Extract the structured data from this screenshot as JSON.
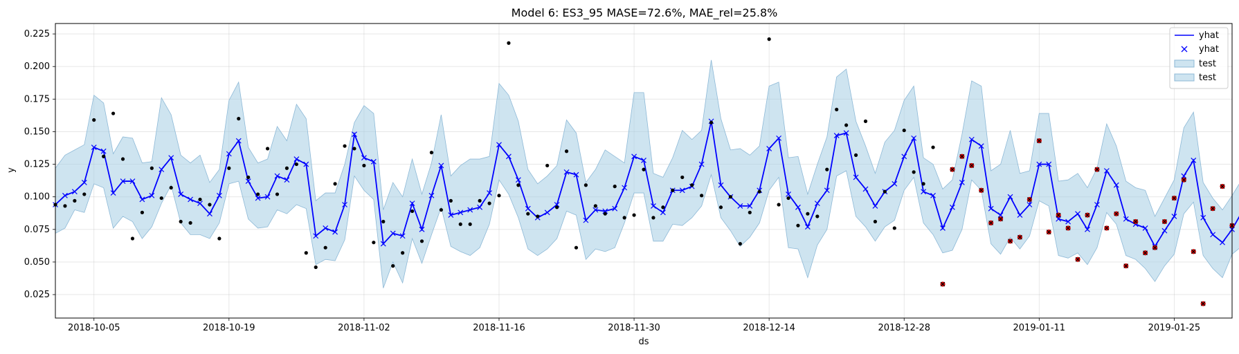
{
  "chart_data": {
    "type": "line",
    "title": "Model 6: ES3_95 MASE=72.6%, MAE_rel=25.8%",
    "xlabel": "ds",
    "ylabel": "y",
    "x_start_date": "2018-10-01",
    "xlim_day_offsets": [
      0,
      122
    ],
    "ylim": [
      0.007,
      0.233
    ],
    "grid": true,
    "legend_location": "top-right",
    "x_ticks": [
      "2018-10-05",
      "2018-10-19",
      "2018-11-02",
      "2018-11-16",
      "2018-11-30",
      "2018-12-14",
      "2018-12-28",
      "2019-01-11",
      "2019-01-25"
    ],
    "y_ticks": [
      "0.025",
      "0.050",
      "0.075",
      "0.100",
      "0.125",
      "0.150",
      "0.175",
      "0.200",
      "0.225"
    ],
    "legend": [
      {
        "label": "yhat",
        "kind": "line",
        "color": "#0000ff"
      },
      {
        "label": "yhat",
        "kind": "marker-x",
        "color": "#0000ff"
      },
      {
        "label": "test",
        "kind": "band",
        "color": "#a6cee3"
      },
      {
        "label": "test",
        "kind": "band",
        "color": "#a6cee3"
      }
    ],
    "colors": {
      "yhat": "#0000ff",
      "band_fill": "#a6cee3",
      "observed": "#000000",
      "test_points": "#cc0000"
    },
    "yhat": [
      0.094,
      0.101,
      0.104,
      0.111,
      0.138,
      0.135,
      0.103,
      0.112,
      0.112,
      0.098,
      0.101,
      0.121,
      0.13,
      0.102,
      0.098,
      0.095,
      0.087,
      0.101,
      0.133,
      0.143,
      0.112,
      0.099,
      0.1,
      0.116,
      0.113,
      0.129,
      0.125,
      0.07,
      0.076,
      0.073,
      0.094,
      0.148,
      0.13,
      0.127,
      0.064,
      0.072,
      0.07,
      0.095,
      0.075,
      0.101,
      0.124,
      0.086,
      0.088,
      0.09,
      0.092,
      0.103,
      0.14,
      0.131,
      0.113,
      0.091,
      0.084,
      0.088,
      0.094,
      0.119,
      0.117,
      0.082,
      0.09,
      0.089,
      0.091,
      0.107,
      0.131,
      0.128,
      0.093,
      0.088,
      0.105,
      0.105,
      0.108,
      0.125,
      0.158,
      0.109,
      0.1,
      0.093,
      0.093,
      0.105,
      0.137,
      0.145,
      0.102,
      0.092,
      0.077,
      0.095,
      0.105,
      0.147,
      0.149,
      0.115,
      0.106,
      0.093,
      0.104,
      0.11,
      0.131,
      0.145,
      0.104,
      0.101,
      0.076,
      0.092,
      0.111,
      0.144,
      0.139,
      0.091,
      0.086,
      0.1,
      0.086,
      0.094,
      0.125,
      0.125,
      0.083,
      0.081,
      0.087,
      0.075,
      0.094,
      0.12,
      0.109,
      0.083,
      0.079,
      0.076,
      0.062,
      0.074,
      0.085,
      0.116,
      0.128,
      0.084,
      0.071,
      0.065,
      0.075,
      0.088
    ],
    "band_lower": [
      0.072,
      0.076,
      0.09,
      0.088,
      0.11,
      0.107,
      0.076,
      0.085,
      0.081,
      0.068,
      0.077,
      0.095,
      0.109,
      0.08,
      0.071,
      0.071,
      0.068,
      0.08,
      0.11,
      0.112,
      0.083,
      0.076,
      0.077,
      0.09,
      0.087,
      0.094,
      0.091,
      0.048,
      0.052,
      0.051,
      0.067,
      0.116,
      0.105,
      0.098,
      0.03,
      0.05,
      0.034,
      0.068,
      0.049,
      0.071,
      0.092,
      0.062,
      0.058,
      0.055,
      0.061,
      0.079,
      0.113,
      0.102,
      0.084,
      0.06,
      0.055,
      0.06,
      0.068,
      0.089,
      0.086,
      0.052,
      0.06,
      0.058,
      0.061,
      0.08,
      0.103,
      0.103,
      0.066,
      0.066,
      0.079,
      0.078,
      0.084,
      0.093,
      0.117,
      0.084,
      0.074,
      0.062,
      0.069,
      0.08,
      0.105,
      0.115,
      0.061,
      0.06,
      0.038,
      0.063,
      0.075,
      0.116,
      0.12,
      0.085,
      0.077,
      0.066,
      0.077,
      0.082,
      0.105,
      0.115,
      0.08,
      0.071,
      0.057,
      0.059,
      0.075,
      0.113,
      0.105,
      0.064,
      0.056,
      0.069,
      0.06,
      0.07,
      0.097,
      0.093,
      0.055,
      0.053,
      0.057,
      0.048,
      0.061,
      0.088,
      0.079,
      0.055,
      0.052,
      0.045,
      0.035,
      0.047,
      0.056,
      0.087,
      0.096,
      0.055,
      0.045,
      0.038,
      0.056,
      0.062
    ],
    "band_upper": [
      0.122,
      0.132,
      0.136,
      0.14,
      0.178,
      0.172,
      0.133,
      0.146,
      0.145,
      0.126,
      0.127,
      0.176,
      0.163,
      0.132,
      0.126,
      0.132,
      0.111,
      0.121,
      0.174,
      0.188,
      0.138,
      0.126,
      0.129,
      0.154,
      0.143,
      0.171,
      0.16,
      0.097,
      0.103,
      0.103,
      0.125,
      0.157,
      0.17,
      0.164,
      0.09,
      0.111,
      0.1,
      0.129,
      0.102,
      0.126,
      0.163,
      0.116,
      0.124,
      0.129,
      0.129,
      0.131,
      0.187,
      0.178,
      0.158,
      0.121,
      0.11,
      0.116,
      0.124,
      0.159,
      0.149,
      0.111,
      0.121,
      0.136,
      0.131,
      0.126,
      0.18,
      0.18,
      0.118,
      0.115,
      0.13,
      0.151,
      0.144,
      0.151,
      0.205,
      0.16,
      0.136,
      0.137,
      0.132,
      0.139,
      0.185,
      0.188,
      0.13,
      0.131,
      0.102,
      0.125,
      0.146,
      0.192,
      0.198,
      0.158,
      0.139,
      0.118,
      0.142,
      0.151,
      0.174,
      0.185,
      0.13,
      0.125,
      0.106,
      0.113,
      0.148,
      0.189,
      0.185,
      0.12,
      0.125,
      0.151,
      0.118,
      0.12,
      0.164,
      0.164,
      0.112,
      0.113,
      0.118,
      0.107,
      0.122,
      0.156,
      0.139,
      0.112,
      0.107,
      0.105,
      0.085,
      0.099,
      0.113,
      0.153,
      0.165,
      0.111,
      0.099,
      0.09,
      0.101,
      0.113
    ],
    "observed": [
      [
        0,
        0.094
      ],
      [
        1,
        0.093
      ],
      [
        2,
        0.097
      ],
      [
        3,
        0.102
      ],
      [
        4,
        0.159
      ],
      [
        5,
        0.131
      ],
      [
        6,
        0.164
      ],
      [
        7,
        0.129
      ],
      [
        8,
        0.068
      ],
      [
        9,
        0.088
      ],
      [
        10,
        0.122
      ],
      [
        11,
        0.099
      ],
      [
        12,
        0.107
      ],
      [
        13,
        0.081
      ],
      [
        14,
        0.08
      ],
      [
        15,
        0.098
      ],
      [
        16,
        0.094
      ],
      [
        17,
        0.068
      ],
      [
        18,
        0.122
      ],
      [
        19,
        0.16
      ],
      [
        20,
        0.115
      ],
      [
        21,
        0.102
      ],
      [
        22,
        0.137
      ],
      [
        23,
        0.102
      ],
      [
        24,
        0.122
      ],
      [
        25,
        0.125
      ],
      [
        26,
        0.057
      ],
      [
        27,
        0.046
      ],
      [
        28,
        0.061
      ],
      [
        29,
        0.11
      ],
      [
        30,
        0.139
      ],
      [
        31,
        0.137
      ],
      [
        32,
        0.124
      ],
      [
        33,
        0.065
      ],
      [
        34,
        0.081
      ],
      [
        35,
        0.047
      ],
      [
        36,
        0.057
      ],
      [
        37,
        0.089
      ],
      [
        38,
        0.066
      ],
      [
        39,
        0.134
      ],
      [
        40,
        0.09
      ],
      [
        41,
        0.097
      ],
      [
        42,
        0.079
      ],
      [
        43,
        0.079
      ],
      [
        44,
        0.097
      ],
      [
        45,
        0.095
      ],
      [
        46,
        0.101
      ],
      [
        47,
        0.218
      ],
      [
        48,
        0.109
      ],
      [
        49,
        0.087
      ],
      [
        50,
        0.085
      ],
      [
        51,
        0.124
      ],
      [
        52,
        0.092
      ],
      [
        53,
        0.135
      ],
      [
        54,
        0.061
      ],
      [
        55,
        0.109
      ],
      [
        56,
        0.093
      ],
      [
        57,
        0.087
      ],
      [
        58,
        0.108
      ],
      [
        59,
        0.084
      ],
      [
        60,
        0.086
      ],
      [
        61,
        0.121
      ],
      [
        62,
        0.084
      ],
      [
        63,
        0.092
      ],
      [
        64,
        0.105
      ],
      [
        65,
        0.115
      ],
      [
        66,
        0.109
      ],
      [
        67,
        0.101
      ],
      [
        68,
        0.157
      ],
      [
        69,
        0.092
      ],
      [
        70,
        0.1
      ],
      [
        71,
        0.064
      ],
      [
        72,
        0.088
      ],
      [
        73,
        0.104
      ],
      [
        74,
        0.221
      ],
      [
        75,
        0.094
      ],
      [
        76,
        0.099
      ],
      [
        77,
        0.078
      ],
      [
        78,
        0.087
      ],
      [
        79,
        0.085
      ],
      [
        80,
        0.121
      ],
      [
        81,
        0.167
      ],
      [
        82,
        0.155
      ],
      [
        83,
        0.132
      ],
      [
        84,
        0.158
      ],
      [
        85,
        0.081
      ],
      [
        86,
        0.104
      ],
      [
        87,
        0.076
      ],
      [
        88,
        0.151
      ],
      [
        89,
        0.119
      ],
      [
        90,
        0.11
      ],
      [
        91,
        0.138
      ]
    ],
    "test_points": [
      [
        92,
        0.033
      ],
      [
        93,
        0.121
      ],
      [
        94,
        0.131
      ],
      [
        95,
        0.124
      ],
      [
        96,
        0.105
      ],
      [
        97,
        0.08
      ],
      [
        98,
        0.083
      ],
      [
        99,
        0.066
      ],
      [
        100,
        0.069
      ],
      [
        101,
        0.098
      ],
      [
        102,
        0.143
      ],
      [
        103,
        0.073
      ],
      [
        104,
        0.086
      ],
      [
        105,
        0.076
      ],
      [
        106,
        0.052
      ],
      [
        107,
        0.086
      ],
      [
        108,
        0.121
      ],
      [
        109,
        0.076
      ],
      [
        110,
        0.087
      ],
      [
        111,
        0.047
      ],
      [
        112,
        0.081
      ],
      [
        113,
        0.057
      ],
      [
        114,
        0.061
      ],
      [
        115,
        0.081
      ],
      [
        116,
        0.099
      ],
      [
        117,
        0.113
      ],
      [
        118,
        0.058
      ],
      [
        119,
        0.018
      ],
      [
        120,
        0.091
      ],
      [
        121,
        0.108
      ],
      [
        122,
        0.078
      ]
    ]
  }
}
